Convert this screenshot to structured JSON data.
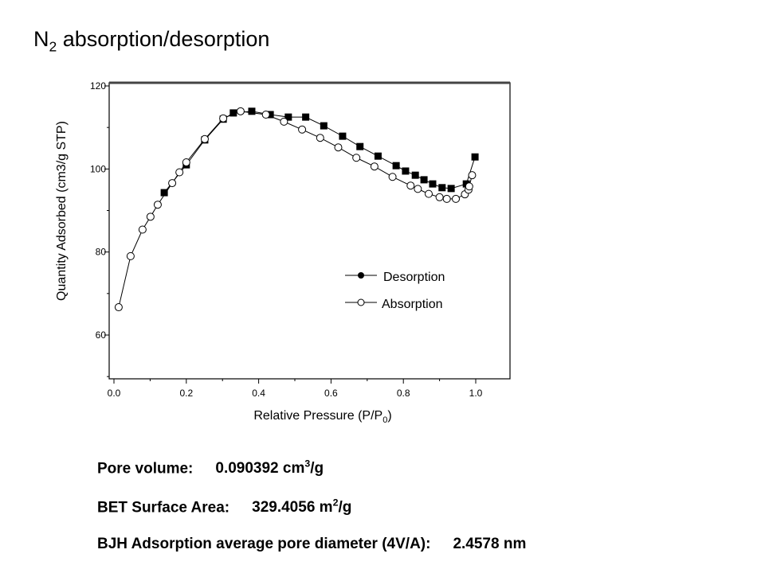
{
  "title": {
    "main": "N",
    "sub": "2",
    "rest": " absorption/desorption"
  },
  "stats": [
    {
      "label": "Pore volume:",
      "value": "0.090392 cm",
      "sup": "3",
      "unit_tail": "/g"
    },
    {
      "label": "BET Surface Area:",
      "value": "329.4056 m",
      "sup": "2",
      "unit_tail": "/g"
    },
    {
      "label": "BJH Adsorption average pore diameter (4V/A):",
      "value": "2.4578 nm",
      "sup": "",
      "unit_tail": ""
    }
  ],
  "chart_data": {
    "type": "scatter",
    "xlabel": "Relative Pressure (P/P0)",
    "ylabel": "Quantity Adsorbed (cm3/g STP)",
    "xlim": [
      0,
      1.1
    ],
    "ylim": [
      50,
      120
    ],
    "xticks": [
      "0.0",
      "0.2",
      "0.4",
      "0.6",
      "0.8",
      "1.0"
    ],
    "yticks": [
      "60",
      "80",
      "100",
      "120"
    ],
    "legend_placement": "center-right",
    "series": [
      {
        "name": "Desorption",
        "marker": "filled-square",
        "legend_marker": "filled-circle",
        "color": "#000000",
        "x": [
          0.139,
          0.2,
          0.251,
          0.302,
          0.33,
          0.381,
          0.432,
          0.482,
          0.53,
          0.58,
          0.632,
          0.68,
          0.73,
          0.78,
          0.806,
          0.833,
          0.857,
          0.881,
          0.907,
          0.932,
          0.974,
          0.998
        ],
        "y": [
          94.3,
          101,
          107,
          112,
          113.5,
          113.9,
          113.1,
          112.5,
          112.5,
          110.4,
          107.9,
          105.4,
          103.1,
          100.8,
          99.5,
          98.5,
          97.4,
          96.4,
          95.5,
          95.3,
          96.4,
          102.9
        ]
      },
      {
        "name": "Absorption",
        "marker": "open-circle",
        "legend_marker": "open-circle",
        "color": "#000000",
        "x": [
          0.013,
          0.046,
          0.079,
          0.101,
          0.121,
          0.161,
          0.181,
          0.2,
          0.251,
          0.302,
          0.35,
          0.42,
          0.47,
          0.52,
          0.57,
          0.62,
          0.67,
          0.72,
          0.77,
          0.82,
          0.84,
          0.87,
          0.9,
          0.92,
          0.945,
          0.97,
          0.98,
          0.982,
          0.99
        ],
        "y": [
          66.7,
          79,
          85.4,
          88.5,
          91.4,
          96.6,
          99.2,
          101.6,
          107.2,
          112.2,
          113.9,
          113.1,
          111.4,
          109.5,
          107.5,
          105.2,
          102.7,
          100.6,
          98.1,
          96,
          95.2,
          94,
          93.2,
          92.8,
          92.8,
          93.9,
          95,
          95.8,
          98.5
        ]
      }
    ]
  }
}
